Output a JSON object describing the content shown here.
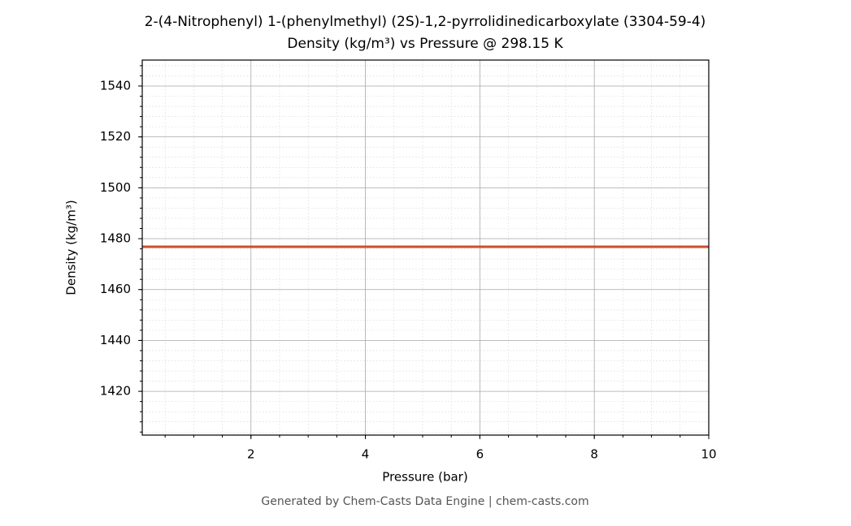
{
  "chart_data": {
    "type": "line",
    "title": "2-(4-Nitrophenyl) 1-(phenylmethyl) (2S)-1,2-pyrrolidinedicarboxylate (3304-59-4)",
    "subtitle": "Density (kg/m³) vs Pressure @ 298.15 K",
    "x_label": "Pressure (bar)",
    "y_label": "Density (kg/m³)",
    "footer": "Generated by Chem-Casts Data Engine | chem-casts.com",
    "x": [
      0.1,
      10
    ],
    "series": [
      {
        "name": "Density",
        "color": "#c8502a",
        "values": [
          1476.8,
          1476.8
        ]
      }
    ],
    "xlim": [
      0.1,
      10
    ],
    "ylim": [
      1402.8,
      1550.2
    ],
    "xticks": [
      2,
      4,
      6,
      8,
      10
    ],
    "yticks": [
      1420,
      1440,
      1460,
      1480,
      1500,
      1520,
      1540
    ],
    "grid": true,
    "minor_grid": true,
    "x_minor_step": 0.5,
    "y_minor_step": 4
  }
}
